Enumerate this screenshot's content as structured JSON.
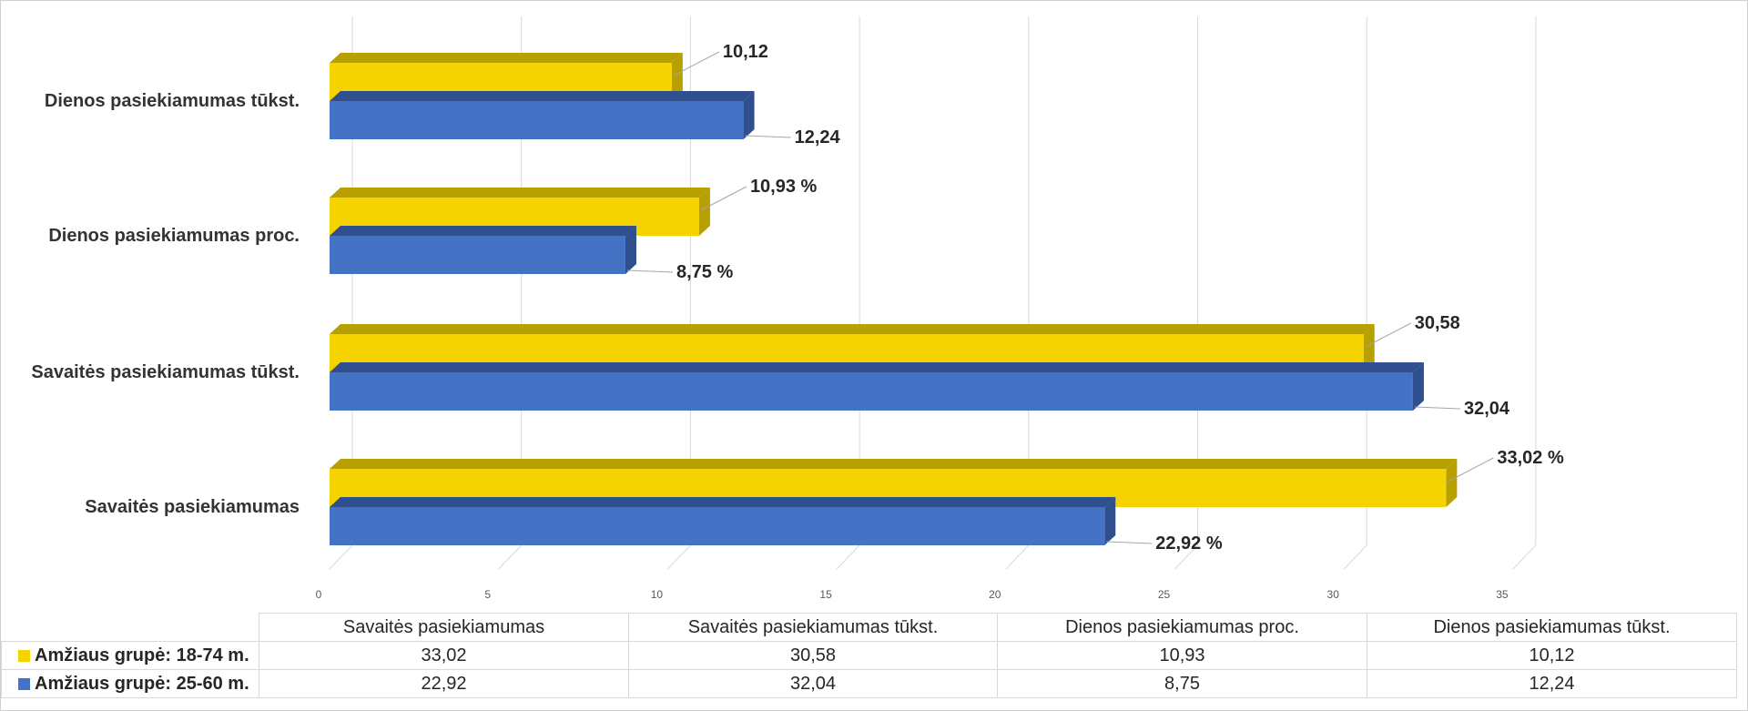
{
  "chart_data": {
    "type": "bar",
    "orientation": "horizontal",
    "three_d": true,
    "categories": [
      "Dienos pasiekiamumas tūkst.",
      "Dienos pasiekiamumas proc.",
      "Savaitės pasiekiamumas tūkst.",
      "Savaitės pasiekiamumas"
    ],
    "series": [
      {
        "name": "Amžiaus grupė: 18-74 m.",
        "color": "#F5D300",
        "side_color": "#B8A000",
        "values": [
          10.12,
          10.93,
          30.58,
          33.02
        ],
        "labels": [
          "10,12",
          "10,93 %",
          "30,58",
          "33,02 %"
        ]
      },
      {
        "name": "Amžiaus grupė: 25-60 m.",
        "color": "#4472C4",
        "side_color": "#2F4F8F",
        "values": [
          12.24,
          8.75,
          32.04,
          22.92
        ],
        "labels": [
          "12,24",
          "8,75 %",
          "32,04",
          "22,92 %"
        ]
      }
    ],
    "xlim": [
      0,
      35
    ],
    "xticks": [
      0,
      5,
      10,
      15,
      20,
      25,
      30,
      35
    ],
    "grid": true,
    "legend": "data-table"
  },
  "data_table": {
    "headers": [
      "Savaitės pasiekiamumas",
      "Savaitės pasiekiamumas tūkst.",
      "Dienos pasiekiamumas proc.",
      "Dienos pasiekiamumas tūkst."
    ],
    "rows": [
      {
        "label": "Amžiaus grupė: 18-74 m.",
        "color": "#F5D300",
        "values": [
          "33,02",
          "30,58",
          "10,93",
          "10,12"
        ]
      },
      {
        "label": "Amžiaus grupė: 25-60 m.",
        "color": "#4472C4",
        "values": [
          "22,92",
          "32,04",
          "8,75",
          "12,24"
        ]
      }
    ]
  }
}
